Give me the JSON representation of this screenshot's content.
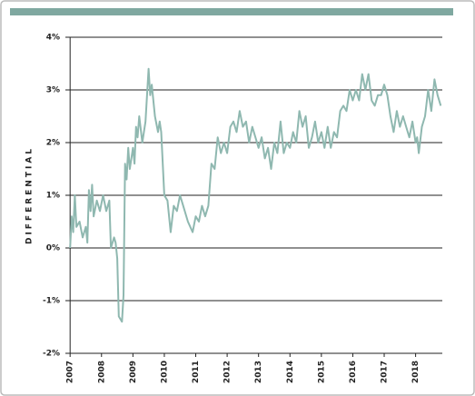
{
  "chart_data": {
    "type": "line",
    "y_label": "DIFFERENTIAL",
    "x": [
      2007.0,
      2007.05,
      2007.1,
      2007.15,
      2007.2,
      2007.3,
      2007.4,
      2007.5,
      2007.55,
      2007.6,
      2007.65,
      2007.7,
      2007.75,
      2007.85,
      2007.95,
      2008.05,
      2008.15,
      2008.25,
      2008.3,
      2008.4,
      2008.45,
      2008.5,
      2008.55,
      2008.65,
      2008.7,
      2008.75,
      2008.8,
      2008.85,
      2008.9,
      2009.0,
      2009.05,
      2009.1,
      2009.15,
      2009.2,
      2009.3,
      2009.4,
      2009.5,
      2009.55,
      2009.6,
      2009.7,
      2009.8,
      2009.85,
      2009.9,
      2010.0,
      2010.1,
      2010.2,
      2010.3,
      2010.4,
      2010.5,
      2010.6,
      2010.75,
      2010.9,
      2011.0,
      2011.1,
      2011.2,
      2011.3,
      2011.4,
      2011.5,
      2011.6,
      2011.7,
      2011.8,
      2011.9,
      2012.0,
      2012.1,
      2012.2,
      2012.3,
      2012.4,
      2012.5,
      2012.6,
      2012.7,
      2012.8,
      2013.0,
      2013.1,
      2013.2,
      2013.3,
      2013.4,
      2013.5,
      2013.6,
      2013.7,
      2013.8,
      2013.9,
      2014.0,
      2014.1,
      2014.2,
      2014.3,
      2014.4,
      2014.5,
      2014.6,
      2014.7,
      2014.8,
      2014.9,
      2015.0,
      2015.1,
      2015.2,
      2015.3,
      2015.4,
      2015.5,
      2015.6,
      2015.7,
      2015.8,
      2015.9,
      2016.0,
      2016.1,
      2016.2,
      2016.3,
      2016.4,
      2016.5,
      2016.6,
      2016.7,
      2016.8,
      2016.9,
      2017.0,
      2017.1,
      2017.2,
      2017.3,
      2017.4,
      2017.5,
      2017.6,
      2017.7,
      2017.8,
      2017.9,
      2018.0,
      2018.05,
      2018.1,
      2018.2,
      2018.3,
      2018.4,
      2018.5,
      2018.6,
      2018.7,
      2018.8
    ],
    "series": [
      {
        "color": "#8fb8b0",
        "values": [
          0.0,
          0.6,
          0.3,
          1.0,
          0.4,
          0.5,
          0.2,
          0.4,
          0.1,
          1.1,
          0.7,
          1.2,
          0.6,
          0.9,
          0.7,
          1.0,
          0.7,
          0.9,
          0.0,
          0.2,
          0.1,
          -0.2,
          -1.3,
          -1.4,
          -0.9,
          1.6,
          1.3,
          1.9,
          1.5,
          1.9,
          1.6,
          2.3,
          2.1,
          2.5,
          2.0,
          2.4,
          3.4,
          2.9,
          3.1,
          2.5,
          2.2,
          2.4,
          2.2,
          1.0,
          0.9,
          0.3,
          0.8,
          0.7,
          1.0,
          0.8,
          0.5,
          0.3,
          0.6,
          0.5,
          0.8,
          0.6,
          0.8,
          1.6,
          1.5,
          2.1,
          1.8,
          2.0,
          1.8,
          2.3,
          2.4,
          2.2,
          2.6,
          2.3,
          2.4,
          2.0,
          2.3,
          1.9,
          2.1,
          1.7,
          1.9,
          1.5,
          2.0,
          1.8,
          2.4,
          1.8,
          2.0,
          1.9,
          2.2,
          2.0,
          2.6,
          2.3,
          2.5,
          1.9,
          2.1,
          2.4,
          2.0,
          2.2,
          1.9,
          2.3,
          1.9,
          2.2,
          2.1,
          2.6,
          2.7,
          2.6,
          3.0,
          2.8,
          3.0,
          2.8,
          3.3,
          3.0,
          3.3,
          2.8,
          2.7,
          2.9,
          2.9,
          3.1,
          2.9,
          2.5,
          2.2,
          2.6,
          2.3,
          2.5,
          2.3,
          2.1,
          2.4,
          2.0,
          2.1,
          1.8,
          2.3,
          2.5,
          3.0,
          2.6,
          3.2,
          2.9,
          2.7
        ]
      }
    ],
    "xlim": [
      2006.85,
      2018.85
    ],
    "xticks": [
      2007,
      2008,
      2009,
      2010,
      2011,
      2012,
      2013,
      2014,
      2015,
      2016,
      2017,
      2018
    ],
    "ylim": [
      -2,
      4
    ],
    "yticks": [
      {
        "value": -2,
        "label": "-2%"
      },
      {
        "value": -1,
        "label": "-1%"
      },
      {
        "value": 0,
        "label": "0%"
      },
      {
        "value": 1,
        "label": "1%"
      },
      {
        "value": 2,
        "label": "2%"
      },
      {
        "value": 3,
        "label": "3%"
      },
      {
        "value": 4,
        "label": "4%"
      }
    ],
    "grid": true
  }
}
